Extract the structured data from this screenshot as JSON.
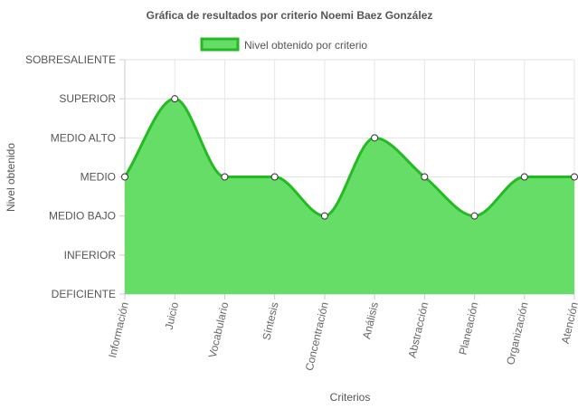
{
  "chart_data": {
    "type": "area",
    "title": "Gráfica de resultados por criterio Noemi Baez González",
    "xlabel": "Criterios",
    "ylabel": "Nivel obtenido",
    "y_levels": [
      "DEFICIENTE",
      "INFERIOR",
      "MEDIO BAJO",
      "MEDIO",
      "MEDIO ALTO",
      "SUPERIOR",
      "SOBRESALIENTE"
    ],
    "categories": [
      "Información",
      "Juicio",
      "Vocabulario",
      "Síntesis",
      "Concentración",
      "Análisis",
      "Abstracción",
      "Planeación",
      "Organización",
      "Atención"
    ],
    "series": [
      {
        "name": "Nivel obtenido por criterio",
        "values": [
          "MEDIO",
          "SUPERIOR",
          "MEDIO",
          "MEDIO",
          "MEDIO BAJO",
          "MEDIO ALTO",
          "MEDIO",
          "MEDIO BAJO",
          "MEDIO",
          "MEDIO"
        ]
      }
    ],
    "colors": {
      "fill": "#66dd66",
      "line": "#22bb22",
      "grid": "#e5e5e5"
    },
    "legend_position": "top",
    "grid": true
  }
}
